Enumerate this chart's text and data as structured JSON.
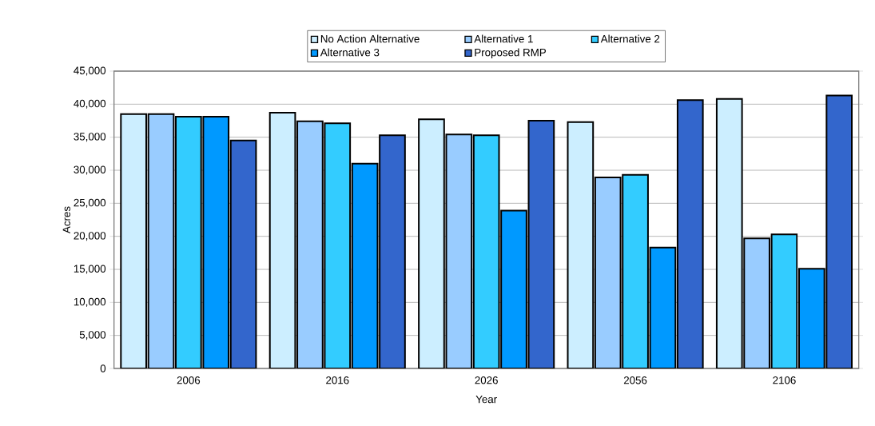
{
  "chart_data": {
    "type": "bar",
    "xlabel": "Year",
    "ylabel": "Acres",
    "categories": [
      "2006",
      "2016",
      "2026",
      "2056",
      "2106"
    ],
    "series": [
      {
        "name": "No Action Alternative",
        "color": "#cceeff",
        "values": [
          38500,
          38700,
          37700,
          37300,
          40800
        ]
      },
      {
        "name": "Alternative 1",
        "color": "#99ccff",
        "values": [
          38500,
          37400,
          35400,
          28900,
          19700
        ]
      },
      {
        "name": "Alternative 2",
        "color": "#33ccff",
        "values": [
          38100,
          37100,
          35300,
          29300,
          20300
        ]
      },
      {
        "name": "Alternative 3",
        "color": "#0099ff",
        "values": [
          38100,
          31000,
          23900,
          18300,
          15100
        ]
      },
      {
        "name": "Proposed RMP",
        "color": "#3366cc",
        "values": [
          34500,
          35300,
          37500,
          40600,
          41300
        ]
      }
    ],
    "ylim": [
      0,
      45000
    ],
    "yticks": [
      {
        "value": 0,
        "label": "0"
      },
      {
        "value": 5000,
        "label": "5,000"
      },
      {
        "value": 10000,
        "label": "10,000"
      },
      {
        "value": 15000,
        "label": "15,000"
      },
      {
        "value": 20000,
        "label": "20,000"
      },
      {
        "value": 25000,
        "label": "25,000"
      },
      {
        "value": 30000,
        "label": "30,000"
      },
      {
        "value": 35000,
        "label": "35,000"
      },
      {
        "value": 40000,
        "label": "40,000"
      },
      {
        "value": 45000,
        "label": "45,000"
      }
    ],
    "grid": "y",
    "legend": "top"
  }
}
